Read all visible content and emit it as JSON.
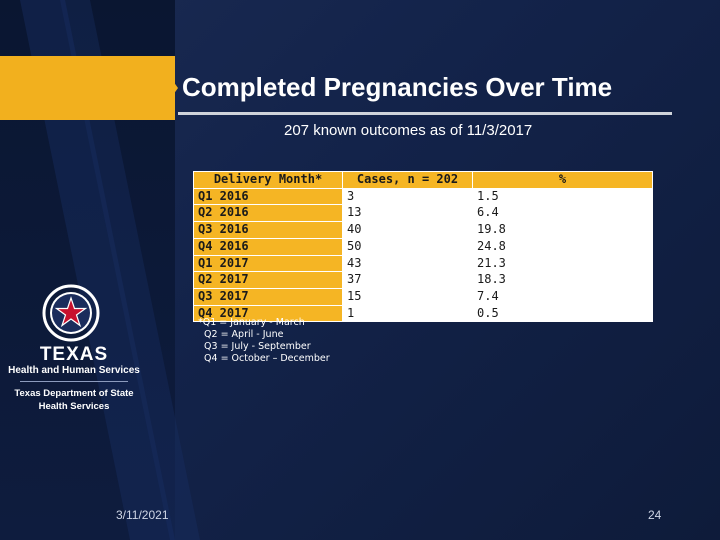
{
  "slide": {
    "title": "Completed Pregnancies Over Time",
    "subtitle": "207 known outcomes as of 11/3/2017",
    "date": "3/11/2021",
    "page_number": "24"
  },
  "table": {
    "headers": [
      "Delivery Month*",
      "Cases, n = 202",
      "%"
    ],
    "rows": [
      {
        "quarter": "Q1 2016",
        "cases": "3",
        "pct": "1.5"
      },
      {
        "quarter": "Q2 2016",
        "cases": "13",
        "pct": "6.4"
      },
      {
        "quarter": "Q3 2016",
        "cases": "40",
        "pct": "19.8"
      },
      {
        "quarter": "Q4 2016",
        "cases": "50",
        "pct": "24.8"
      },
      {
        "quarter": "Q1 2017",
        "cases": "43",
        "pct": "21.3"
      },
      {
        "quarter": "Q2 2017",
        "cases": "37",
        "pct": "18.3"
      },
      {
        "quarter": "Q3 2017",
        "cases": "15",
        "pct": "7.4"
      },
      {
        "quarter": "Q4 2017",
        "cases": "1",
        "pct": "0.5"
      }
    ]
  },
  "footnote": {
    "lines": [
      "*Q1 = January - March",
      "  Q2 = April - June",
      "  Q3 = July - September",
      "  Q4 = October – December"
    ]
  },
  "logo": {
    "line1": "TEXAS",
    "line2": "Health and Human Services",
    "line3": "Texas Department of State",
    "line4": "Health Services"
  },
  "colors": {
    "accent_gold": "#f2b01e",
    "background_navy": "#13234a",
    "table_header": "#f5b524"
  }
}
